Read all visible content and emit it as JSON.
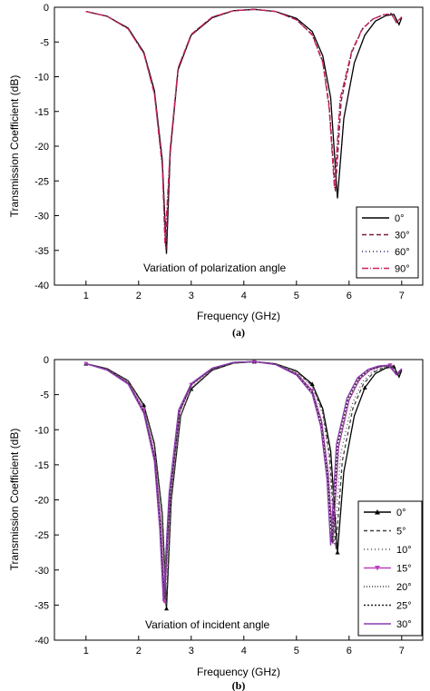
{
  "chart_data": [
    {
      "id": "a",
      "type": "line",
      "panel_label": "(a)",
      "xlabel": "Frequency (GHz)",
      "ylabel": "Transmission Coefficient (dB)",
      "xlim": [
        0.4,
        7.4
      ],
      "ylim": [
        -40,
        0
      ],
      "xticks": [
        1,
        2,
        3,
        4,
        5,
        6,
        7
      ],
      "yticks": [
        0,
        -5,
        -10,
        -15,
        -20,
        -25,
        -30,
        -35,
        -40
      ],
      "annotation": "Variation of polarization angle",
      "legend_position": "bottom-right",
      "series": [
        {
          "name": "0°",
          "color": "#000000",
          "dash": "",
          "marker": "none",
          "x": [
            1.0,
            1.4,
            1.8,
            2.1,
            2.3,
            2.45,
            2.53,
            2.6,
            2.75,
            3.0,
            3.4,
            3.8,
            4.2,
            4.6,
            5.0,
            5.3,
            5.5,
            5.65,
            5.78,
            5.9,
            6.1,
            6.3,
            6.5,
            6.7,
            6.85,
            6.95,
            7.0
          ],
          "y": [
            -0.6,
            -1.3,
            -3.0,
            -6.5,
            -12.0,
            -22.0,
            -35.5,
            -21.0,
            -9.0,
            -4.0,
            -1.5,
            -0.5,
            -0.3,
            -0.6,
            -1.6,
            -3.5,
            -7.0,
            -13.0,
            -27.5,
            -16.0,
            -8.0,
            -4.0,
            -2.0,
            -1.2,
            -1.0,
            -2.5,
            -1.5
          ]
        },
        {
          "name": "30°",
          "color": "#7a1c3c",
          "dash": "5,3",
          "marker": "none",
          "x": [
            1.0,
            1.4,
            1.8,
            2.1,
            2.3,
            2.45,
            2.52,
            2.6,
            2.75,
            3.0,
            3.4,
            3.8,
            4.2,
            4.6,
            5.0,
            5.3,
            5.5,
            5.62,
            5.74,
            5.85,
            6.05,
            6.25,
            6.45,
            6.65,
            6.8,
            6.9,
            7.0
          ],
          "y": [
            -0.6,
            -1.3,
            -3.1,
            -6.6,
            -12.3,
            -22.5,
            -35.0,
            -20.5,
            -8.8,
            -3.9,
            -1.4,
            -0.5,
            -0.3,
            -0.6,
            -1.8,
            -3.9,
            -7.8,
            -14.0,
            -26.5,
            -13.5,
            -6.5,
            -3.2,
            -1.7,
            -1.1,
            -0.9,
            -2.2,
            -1.4
          ]
        },
        {
          "name": "60°",
          "color": "#2a2a6a",
          "dash": "1,3",
          "marker": "none",
          "x": [
            1.0,
            1.4,
            1.8,
            2.1,
            2.3,
            2.45,
            2.51,
            2.6,
            2.75,
            3.0,
            3.4,
            3.8,
            4.2,
            4.6,
            5.0,
            5.3,
            5.5,
            5.62,
            5.73,
            5.84,
            6.05,
            6.25,
            6.45,
            6.65,
            6.8,
            6.9,
            7.0
          ],
          "y": [
            -0.6,
            -1.3,
            -3.1,
            -6.6,
            -12.4,
            -22.8,
            -34.5,
            -20.5,
            -8.8,
            -3.9,
            -1.4,
            -0.5,
            -0.3,
            -0.6,
            -1.8,
            -4.0,
            -7.9,
            -14.2,
            -26.0,
            -13.3,
            -6.4,
            -3.1,
            -1.7,
            -1.1,
            -0.9,
            -2.2,
            -1.4
          ]
        },
        {
          "name": "90°",
          "color": "#d02060",
          "dash": "7,2,1,2",
          "marker": "none",
          "x": [
            1.0,
            1.4,
            1.8,
            2.1,
            2.3,
            2.45,
            2.5,
            2.6,
            2.75,
            3.0,
            3.4,
            3.8,
            4.2,
            4.6,
            5.0,
            5.3,
            5.5,
            5.62,
            5.72,
            5.83,
            6.05,
            6.25,
            6.45,
            6.65,
            6.8,
            6.9,
            7.0
          ],
          "y": [
            -0.6,
            -1.3,
            -3.1,
            -6.7,
            -12.5,
            -23.0,
            -34.0,
            -20.4,
            -8.7,
            -3.9,
            -1.4,
            -0.5,
            -0.3,
            -0.6,
            -1.8,
            -4.0,
            -8.0,
            -14.5,
            -26.0,
            -13.2,
            -6.3,
            -3.1,
            -1.7,
            -1.1,
            -0.9,
            -2.2,
            -1.4
          ]
        }
      ]
    },
    {
      "id": "b",
      "type": "line",
      "panel_label": "(b)",
      "xlabel": "Frequency (GHz)",
      "ylabel": "Transmission Coefficient (dB)",
      "xlim": [
        0.4,
        7.4
      ],
      "ylim": [
        -40,
        0
      ],
      "xticks": [
        1,
        2,
        3,
        4,
        5,
        6,
        7
      ],
      "yticks": [
        0,
        -5,
        -10,
        -15,
        -20,
        -25,
        -30,
        -35,
        -40
      ],
      "annotation": "Variation of incident angle",
      "legend_position": "bottom-right",
      "series": [
        {
          "name": "0°",
          "color": "#000000",
          "dash": "",
          "marker": "triangle",
          "x": [
            1.0,
            1.4,
            1.8,
            2.1,
            2.3,
            2.45,
            2.53,
            2.62,
            2.8,
            3.0,
            3.4,
            3.8,
            4.2,
            4.6,
            5.0,
            5.3,
            5.5,
            5.65,
            5.78,
            5.9,
            6.1,
            6.3,
            6.5,
            6.7,
            6.85,
            6.95,
            7.0
          ],
          "y": [
            -0.6,
            -1.3,
            -3.0,
            -6.5,
            -12.0,
            -22.0,
            -35.5,
            -20.0,
            -8.0,
            -4.2,
            -1.5,
            -0.5,
            -0.3,
            -0.6,
            -1.6,
            -3.5,
            -7.0,
            -13.0,
            -27.5,
            -16.0,
            -8.0,
            -4.0,
            -2.0,
            -1.2,
            -1.0,
            -2.5,
            -1.5
          ]
        },
        {
          "name": "5°",
          "color": "#404040",
          "dash": "4,3",
          "marker": "none",
          "x": [
            1.0,
            1.4,
            1.8,
            2.1,
            2.3,
            2.45,
            2.52,
            2.62,
            2.8,
            3.0,
            3.4,
            3.8,
            4.2,
            4.6,
            5.0,
            5.3,
            5.5,
            5.63,
            5.75,
            5.87,
            6.07,
            6.27,
            6.47,
            6.67,
            6.82,
            6.92,
            7.0
          ],
          "y": [
            -0.6,
            -1.3,
            -3.0,
            -6.6,
            -12.2,
            -22.3,
            -35.2,
            -20.0,
            -8.0,
            -4.1,
            -1.5,
            -0.5,
            -0.3,
            -0.6,
            -1.7,
            -3.7,
            -7.4,
            -13.6,
            -27.0,
            -14.5,
            -7.0,
            -3.5,
            -1.8,
            -1.1,
            -0.9,
            -2.3,
            -1.4
          ]
        },
        {
          "name": "10°",
          "color": "#505050",
          "dash": "1,3",
          "marker": "none",
          "x": [
            1.0,
            1.4,
            1.8,
            2.1,
            2.3,
            2.45,
            2.51,
            2.62,
            2.8,
            3.0,
            3.4,
            3.8,
            4.2,
            4.6,
            5.0,
            5.3,
            5.5,
            5.62,
            5.72,
            5.84,
            6.05,
            6.25,
            6.45,
            6.65,
            6.8,
            6.9,
            7.0
          ],
          "y": [
            -0.6,
            -1.3,
            -3.1,
            -6.7,
            -12.4,
            -22.6,
            -35.0,
            -20.0,
            -8.0,
            -4.0,
            -1.4,
            -0.5,
            -0.3,
            -0.6,
            -1.8,
            -3.9,
            -7.8,
            -14.2,
            -26.5,
            -13.5,
            -6.5,
            -3.2,
            -1.7,
            -1.1,
            -0.9,
            -2.2,
            -1.4
          ]
        },
        {
          "name": "15°",
          "color": "#c040c0",
          "dash": "",
          "marker": "triangle-down",
          "x": [
            1.0,
            1.4,
            1.8,
            2.1,
            2.3,
            2.42,
            2.49,
            2.6,
            2.78,
            3.0,
            3.4,
            3.8,
            4.2,
            4.6,
            5.0,
            5.3,
            5.48,
            5.6,
            5.69,
            5.8,
            6.0,
            6.2,
            6.4,
            6.6,
            6.78,
            6.9,
            7.0
          ],
          "y": [
            -0.6,
            -1.4,
            -3.3,
            -7.2,
            -13.5,
            -23.0,
            -34.5,
            -19.5,
            -7.5,
            -3.6,
            -1.3,
            -0.4,
            -0.3,
            -0.7,
            -2.0,
            -4.4,
            -8.8,
            -16.0,
            -26.0,
            -12.5,
            -5.8,
            -2.8,
            -1.5,
            -1.0,
            -0.8,
            -2.2,
            -1.4
          ]
        },
        {
          "name": "20°",
          "color": "#404040",
          "dash": "1,2",
          "marker": "none",
          "x": [
            1.0,
            1.4,
            1.8,
            2.1,
            2.3,
            2.42,
            2.49,
            2.6,
            2.78,
            3.0,
            3.4,
            3.8,
            4.2,
            4.6,
            5.0,
            5.3,
            5.48,
            5.6,
            5.69,
            5.8,
            6.0,
            6.2,
            6.4,
            6.6,
            6.78,
            6.9,
            7.0
          ],
          "y": [
            -0.6,
            -1.4,
            -3.3,
            -7.3,
            -13.6,
            -23.3,
            -34.2,
            -19.4,
            -7.4,
            -3.6,
            -1.3,
            -0.4,
            -0.3,
            -0.7,
            -2.0,
            -4.5,
            -9.0,
            -16.2,
            -26.2,
            -12.4,
            -5.7,
            -2.8,
            -1.5,
            -1.0,
            -0.8,
            -2.2,
            -1.4
          ]
        },
        {
          "name": "25°",
          "color": "#202020",
          "dash": "2,2",
          "marker": "none",
          "x": [
            1.0,
            1.4,
            1.8,
            2.1,
            2.3,
            2.41,
            2.48,
            2.6,
            2.78,
            3.0,
            3.4,
            3.8,
            4.2,
            4.6,
            5.0,
            5.3,
            5.47,
            5.59,
            5.67,
            5.78,
            5.98,
            6.18,
            6.38,
            6.58,
            6.76,
            6.9,
            7.0
          ],
          "y": [
            -0.6,
            -1.4,
            -3.4,
            -7.5,
            -14.0,
            -23.5,
            -34.0,
            -19.2,
            -7.3,
            -3.5,
            -1.3,
            -0.4,
            -0.3,
            -0.7,
            -2.1,
            -4.7,
            -9.2,
            -16.5,
            -26.0,
            -12.2,
            -5.6,
            -2.7,
            -1.4,
            -1.0,
            -0.8,
            -2.2,
            -1.4
          ]
        },
        {
          "name": "30°",
          "color": "#8a3ab0",
          "dash": "",
          "marker": "none",
          "x": [
            1.0,
            1.4,
            1.8,
            2.1,
            2.3,
            2.4,
            2.47,
            2.58,
            2.76,
            3.0,
            3.4,
            3.8,
            4.2,
            4.6,
            5.0,
            5.3,
            5.46,
            5.58,
            5.65,
            5.76,
            5.96,
            6.16,
            6.36,
            6.56,
            6.74,
            6.9,
            7.0
          ],
          "y": [
            -0.6,
            -1.5,
            -3.5,
            -7.7,
            -14.5,
            -24.0,
            -34.5,
            -19.0,
            -7.2,
            -3.4,
            -1.2,
            -0.4,
            -0.3,
            -0.7,
            -2.2,
            -4.9,
            -9.5,
            -17.0,
            -26.5,
            -12.0,
            -5.5,
            -2.6,
            -1.4,
            -0.9,
            -0.8,
            -2.1,
            -1.3
          ]
        }
      ]
    }
  ]
}
